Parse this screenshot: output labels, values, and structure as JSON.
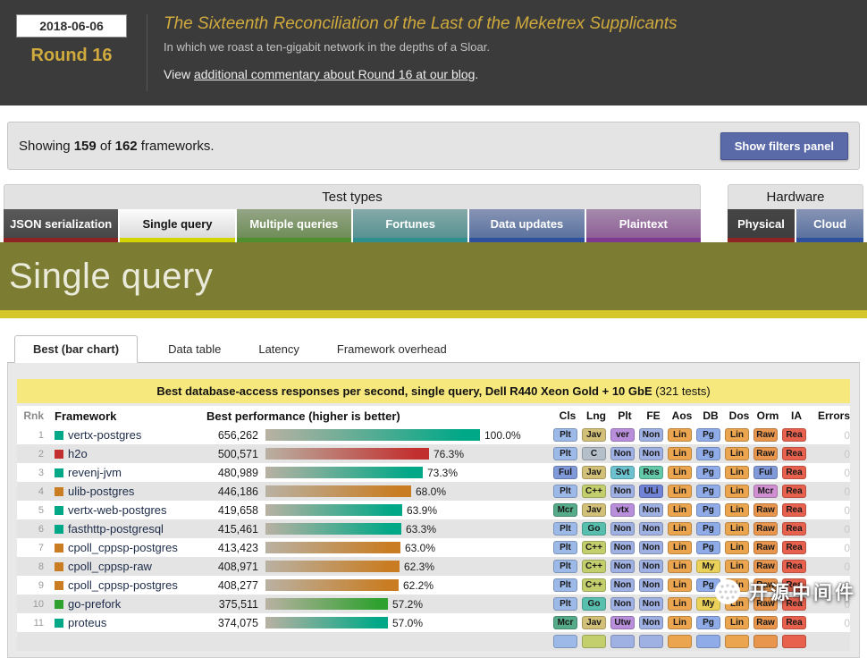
{
  "header": {
    "date": "2018-06-06",
    "round": "Round 16",
    "title": "The Sixteenth Reconciliation of the Last of the Meketrex Supplicants",
    "subtitle": "In which we roast a ten-gigabit network in the depths of a Sloar.",
    "view_prefix": "View ",
    "link": "additional commentary about Round 16 at our blog",
    "view_suffix": "."
  },
  "filters": {
    "prefix": "Showing ",
    "count": "159",
    "mid": " of ",
    "total": "162",
    "suffix": " frameworks.",
    "button": "Show filters panel"
  },
  "sections": {
    "test_types_label": "Test types",
    "hardware_label": "Hardware"
  },
  "test_tabs": [
    {
      "label": "JSON serialization",
      "active": false,
      "bg1": "#5a5a5a",
      "bg2": "#474747",
      "underline": "#8e2424",
      "text": "#ffffff"
    },
    {
      "label": "Single query",
      "active": true,
      "bg1": "#fdfdfd",
      "bg2": "#dadada",
      "underline": "#d4d400",
      "text": "#141414"
    },
    {
      "label": "Multiple queries",
      "active": false,
      "bg1": "#94a586",
      "bg2": "#6f8d58",
      "underline": "#4f8f2f",
      "text": "#ffffff"
    },
    {
      "label": "Fortunes",
      "active": false,
      "bg1": "#86a9a9",
      "bg2": "#579292",
      "underline": "#2f8f8f",
      "text": "#ffffff"
    },
    {
      "label": "Data updates",
      "active": false,
      "bg1": "#8794b4",
      "bg2": "#5a729f",
      "underline": "#2f4f9f",
      "text": "#ffffff"
    },
    {
      "label": "Plaintext",
      "active": false,
      "bg1": "#a58aab",
      "bg2": "#8f5f98",
      "underline": "#7e3a90",
      "text": "#ffffff"
    }
  ],
  "hardware_tabs": [
    {
      "label": "Physical",
      "active": true,
      "bg1": "#454545",
      "bg2": "#3e3e3e",
      "underline": "#8e2424",
      "text": "#ffffff"
    },
    {
      "label": "Cloud",
      "active": false,
      "bg1": "#8794b4",
      "bg2": "#5a729f",
      "underline": "#2f4f9f",
      "text": "#ffffff"
    }
  ],
  "banner": {
    "title": "Single query",
    "bg": "#7c7c33",
    "stripe": "#d5c62b"
  },
  "subtabs": [
    {
      "label": "Best (bar chart)",
      "active": true
    },
    {
      "label": "Data table",
      "active": false
    },
    {
      "label": "Latency",
      "active": false
    },
    {
      "label": "Framework overhead",
      "active": false
    }
  ],
  "chart": {
    "band_bold": "Best database-access responses per second, single query, Dell R440 Xeon Gold + 10 GbE",
    "band_normal": "  (321 tests)",
    "col_rank": "Rnk",
    "col_framework": "Framework",
    "col_perf": "Best performance (higher is better)",
    "badge_cols": [
      "Cls",
      "Lng",
      "Plt",
      "FE",
      "Aos",
      "DB",
      "Dos",
      "Orm",
      "IA"
    ],
    "col_errors": "Errors"
  },
  "rows": [
    {
      "rank": "1",
      "name": "vertx-postgres",
      "color": "#00a887",
      "value": "656,262",
      "pct": "100.0%",
      "pctv": 100.0,
      "errors": "0",
      "badges": [
        [
          "Plt",
          "#9db9e8"
        ],
        [
          "Jav",
          "#d2c078"
        ],
        [
          "ver",
          "#b98fdc"
        ],
        [
          "Non",
          "#9fb0e2"
        ],
        [
          "Lin",
          "#eaa54e"
        ],
        [
          "Pg",
          "#8fabe8"
        ],
        [
          "Lin",
          "#eaa54e"
        ],
        [
          "Raw",
          "#e8964e"
        ],
        [
          "Rea",
          "#e8614e"
        ]
      ]
    },
    {
      "rank": "2",
      "name": "h2o",
      "color": "#c22f2f",
      "value": "500,571",
      "pct": "76.3%",
      "pctv": 76.3,
      "errors": "0",
      "badges": [
        [
          "Plt",
          "#9db9e8"
        ],
        [
          "C",
          "#b4bfc9"
        ],
        [
          "Non",
          "#9fb0e2"
        ],
        [
          "Non",
          "#9fb0e2"
        ],
        [
          "Lin",
          "#eaa54e"
        ],
        [
          "Pg",
          "#8fabe8"
        ],
        [
          "Lin",
          "#eaa54e"
        ],
        [
          "Raw",
          "#e8964e"
        ],
        [
          "Rea",
          "#e8614e"
        ]
      ]
    },
    {
      "rank": "3",
      "name": "revenj-jvm",
      "color": "#00a887",
      "value": "480,989",
      "pct": "73.3%",
      "pctv": 73.3,
      "errors": "0",
      "badges": [
        [
          "Ful",
          "#8099d8"
        ],
        [
          "Jav",
          "#d2c078"
        ],
        [
          "Svt",
          "#6cc3cf"
        ],
        [
          "Res",
          "#63c9a8"
        ],
        [
          "Lin",
          "#eaa54e"
        ],
        [
          "Pg",
          "#8fabe8"
        ],
        [
          "Lin",
          "#eaa54e"
        ],
        [
          "Ful",
          "#8099d8"
        ],
        [
          "Rea",
          "#e8614e"
        ]
      ]
    },
    {
      "rank": "4",
      "name": "ulib-postgres",
      "color": "#c97c21",
      "value": "446,186",
      "pct": "68.0%",
      "pctv": 68.0,
      "errors": "0",
      "badges": [
        [
          "Plt",
          "#9db9e8"
        ],
        [
          "C++",
          "#c3cf6d"
        ],
        [
          "Non",
          "#9fb0e2"
        ],
        [
          "ULi",
          "#7083d6"
        ],
        [
          "Lin",
          "#eaa54e"
        ],
        [
          "Pg",
          "#8fabe8"
        ],
        [
          "Lin",
          "#eaa54e"
        ],
        [
          "Mcr",
          "#cf8fd0"
        ],
        [
          "Rea",
          "#e8614e"
        ]
      ]
    },
    {
      "rank": "5",
      "name": "vertx-web-postgres",
      "color": "#00a887",
      "value": "419,658",
      "pct": "63.9%",
      "pctv": 63.9,
      "errors": "0",
      "badges": [
        [
          "Mcr",
          "#55ab8a"
        ],
        [
          "Jav",
          "#d2c078"
        ],
        [
          "vtx",
          "#b98fdc"
        ],
        [
          "Non",
          "#9fb0e2"
        ],
        [
          "Lin",
          "#eaa54e"
        ],
        [
          "Pg",
          "#8fabe8"
        ],
        [
          "Lin",
          "#eaa54e"
        ],
        [
          "Raw",
          "#e8964e"
        ],
        [
          "Rea",
          "#e8614e"
        ]
      ]
    },
    {
      "rank": "6",
      "name": "fasthttp-postgresql",
      "color": "#00a887",
      "value": "415,461",
      "pct": "63.3%",
      "pctv": 63.3,
      "errors": "0",
      "badges": [
        [
          "Plt",
          "#9db9e8"
        ],
        [
          "Go",
          "#58bfae"
        ],
        [
          "Non",
          "#9fb0e2"
        ],
        [
          "Non",
          "#9fb0e2"
        ],
        [
          "Lin",
          "#eaa54e"
        ],
        [
          "Pg",
          "#8fabe8"
        ],
        [
          "Lin",
          "#eaa54e"
        ],
        [
          "Raw",
          "#e8964e"
        ],
        [
          "Rea",
          "#e8614e"
        ]
      ]
    },
    {
      "rank": "7",
      "name": "cpoll_cppsp-postgres",
      "color": "#c97c21",
      "value": "413,423",
      "pct": "63.0%",
      "pctv": 63.0,
      "errors": "0",
      "badges": [
        [
          "Plt",
          "#9db9e8"
        ],
        [
          "C++",
          "#c3cf6d"
        ],
        [
          "Non",
          "#9fb0e2"
        ],
        [
          "Non",
          "#9fb0e2"
        ],
        [
          "Lin",
          "#eaa54e"
        ],
        [
          "Pg",
          "#8fabe8"
        ],
        [
          "Lin",
          "#eaa54e"
        ],
        [
          "Raw",
          "#e8964e"
        ],
        [
          "Rea",
          "#e8614e"
        ]
      ]
    },
    {
      "rank": "8",
      "name": "cpoll_cppsp-raw",
      "color": "#c97c21",
      "value": "408,971",
      "pct": "62.3%",
      "pctv": 62.3,
      "errors": "0",
      "badges": [
        [
          "Plt",
          "#9db9e8"
        ],
        [
          "C++",
          "#c3cf6d"
        ],
        [
          "Non",
          "#9fb0e2"
        ],
        [
          "Non",
          "#9fb0e2"
        ],
        [
          "Lin",
          "#eaa54e"
        ],
        [
          "My",
          "#ead25a"
        ],
        [
          "Lin",
          "#eaa54e"
        ],
        [
          "Raw",
          "#e8964e"
        ],
        [
          "Rea",
          "#e8614e"
        ]
      ]
    },
    {
      "rank": "9",
      "name": "cpoll_cppsp-postgres",
      "color": "#c97c21",
      "value": "408,277",
      "pct": "62.2%",
      "pctv": 62.2,
      "errors": "0",
      "badges": [
        [
          "Plt",
          "#9db9e8"
        ],
        [
          "C++",
          "#c3cf6d"
        ],
        [
          "Non",
          "#9fb0e2"
        ],
        [
          "Non",
          "#9fb0e2"
        ],
        [
          "Lin",
          "#eaa54e"
        ],
        [
          "Pg",
          "#8fabe8"
        ],
        [
          "Lin",
          "#eaa54e"
        ],
        [
          "Raw",
          "#e8964e"
        ],
        [
          "Rea",
          "#e8614e"
        ]
      ]
    },
    {
      "rank": "10",
      "name": "go-prefork",
      "color": "#2fa12f",
      "value": "375,511",
      "pct": "57.2%",
      "pctv": 57.2,
      "errors": "0",
      "badges": [
        [
          "Plt",
          "#9db9e8"
        ],
        [
          "Go",
          "#58bfae"
        ],
        [
          "Non",
          "#9fb0e2"
        ],
        [
          "Non",
          "#9fb0e2"
        ],
        [
          "Lin",
          "#eaa54e"
        ],
        [
          "My",
          "#ead25a"
        ],
        [
          "Lin",
          "#eaa54e"
        ],
        [
          "Raw",
          "#e8964e"
        ],
        [
          "Rea",
          "#e8614e"
        ]
      ]
    },
    {
      "rank": "11",
      "name": "proteus",
      "color": "#00a887",
      "value": "374,075",
      "pct": "57.0%",
      "pctv": 57.0,
      "errors": "0",
      "badges": [
        [
          "Mcr",
          "#55ab8a"
        ],
        [
          "Jav",
          "#d2c078"
        ],
        [
          "Utw",
          "#b98fdc"
        ],
        [
          "Non",
          "#9fb0e2"
        ],
        [
          "Lin",
          "#eaa54e"
        ],
        [
          "Pg",
          "#8fabe8"
        ],
        [
          "Lin",
          "#eaa54e"
        ],
        [
          "Raw",
          "#e8964e"
        ],
        [
          "Rea",
          "#e8614e"
        ]
      ]
    }
  ],
  "partial_row": {
    "badge_colors": [
      "#9db9e8",
      "#c3cf6d",
      "#9fb0e2",
      "#9fb0e2",
      "#eaa54e",
      "#8fabe8",
      "#eaa54e",
      "#e8964e",
      "#e8614e"
    ]
  },
  "chart_data": {
    "type": "bar",
    "title": "Best database-access responses per second, single query, Dell R440 Xeon Gold + 10 GbE (321 tests)",
    "categories": [
      "vertx-postgres",
      "h2o",
      "revenj-jvm",
      "ulib-postgres",
      "vertx-web-postgres",
      "fasthttp-postgresql",
      "cpoll_cppsp-postgres",
      "cpoll_cppsp-raw",
      "cpoll_cppsp-postgres",
      "go-prefork",
      "proteus"
    ],
    "values": [
      656262,
      500571,
      480989,
      446186,
      419658,
      415461,
      413423,
      408971,
      408277,
      375511,
      374075
    ],
    "percent_of_best": [
      100.0,
      76.3,
      73.3,
      68.0,
      63.9,
      63.3,
      63.0,
      62.3,
      62.2,
      57.2,
      57.0
    ],
    "xlabel": "Best performance (higher is better)",
    "ylabel": "Framework",
    "legend_position": "none",
    "grid": false
  },
  "watermark": {
    "text": "开源中间件"
  }
}
